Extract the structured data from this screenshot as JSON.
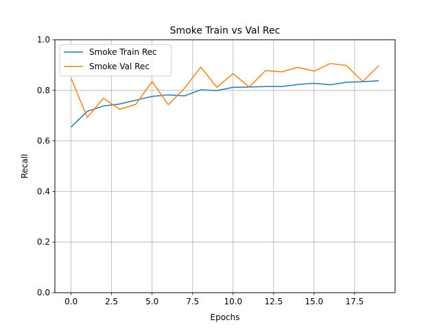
{
  "chart_data": {
    "type": "line",
    "title": "Smoke Train vs Val Rec",
    "xlabel": "Epochs",
    "ylabel": "Recall",
    "xlim": [
      -1.0,
      20.0
    ],
    "ylim": [
      0.0,
      1.0
    ],
    "xticks": [
      0.0,
      2.5,
      5.0,
      7.5,
      10.0,
      12.5,
      15.0,
      17.5
    ],
    "xtick_labels": [
      "0.0",
      "2.5",
      "5.0",
      "7.5",
      "10.0",
      "12.5",
      "15.0",
      "17.5"
    ],
    "yticks": [
      0.0,
      0.2,
      0.4,
      0.6,
      0.8,
      1.0
    ],
    "ytick_labels": [
      "0.0",
      "0.2",
      "0.4",
      "0.6",
      "0.8",
      "1.0"
    ],
    "grid": true,
    "legend_position": "top-left",
    "x": [
      0,
      1,
      2,
      3,
      4,
      5,
      6,
      7,
      8,
      9,
      10,
      11,
      12,
      13,
      14,
      15,
      16,
      17,
      18,
      19
    ],
    "series": [
      {
        "name": "Smoke Train Rec",
        "color": "#1f77b4",
        "values": [
          0.655,
          0.717,
          0.738,
          0.746,
          0.761,
          0.776,
          0.782,
          0.778,
          0.802,
          0.799,
          0.812,
          0.813,
          0.815,
          0.815,
          0.823,
          0.828,
          0.822,
          0.832,
          0.834,
          0.838
        ]
      },
      {
        "name": "Smoke Val Rec",
        "color": "#ff7f0e",
        "values": [
          0.848,
          0.693,
          0.769,
          0.725,
          0.745,
          0.835,
          0.743,
          0.808,
          0.892,
          0.812,
          0.866,
          0.813,
          0.878,
          0.873,
          0.891,
          0.876,
          0.906,
          0.898,
          0.835,
          0.898
        ]
      }
    ]
  }
}
